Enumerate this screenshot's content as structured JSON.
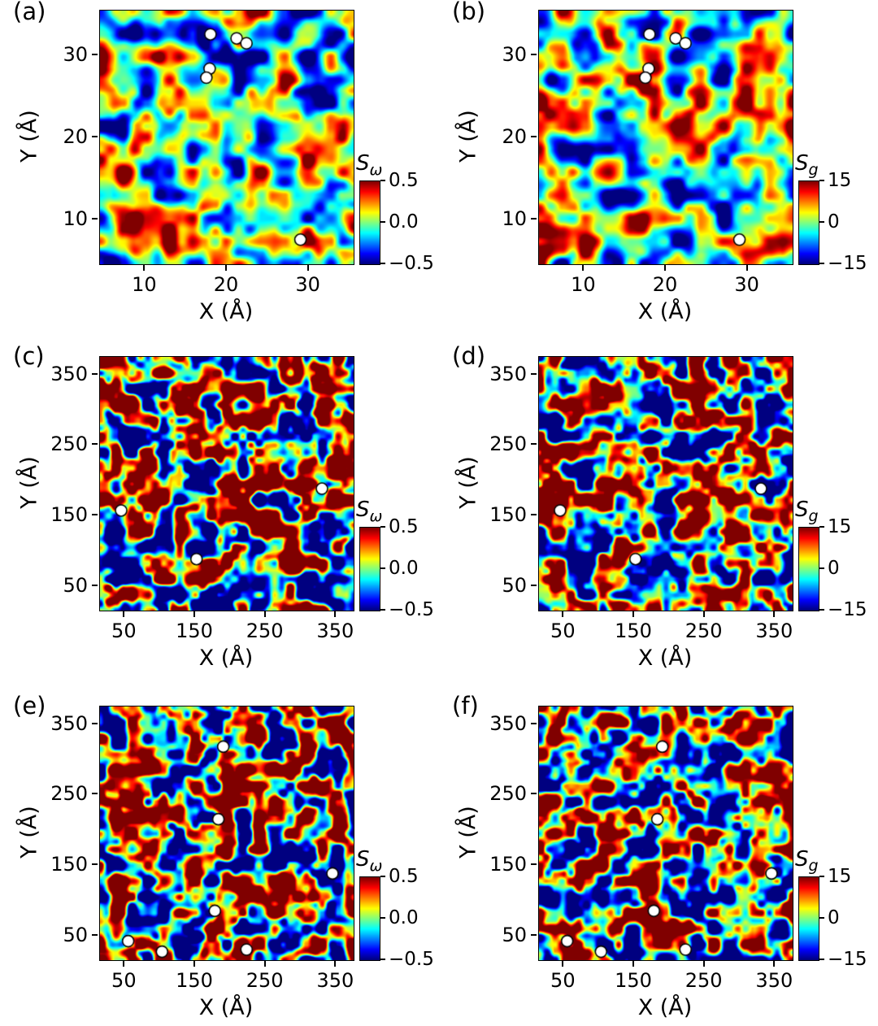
{
  "chart_data": [
    {
      "type": "heatmap",
      "colormap": "jet",
      "label": "(a)",
      "xlabel": "X (Å)",
      "ylabel": "Y (Å)",
      "x_range": [
        4.5,
        35.5
      ],
      "y_range": [
        4.5,
        35.5
      ],
      "x_ticks": [
        "10",
        "20",
        "30"
      ],
      "y_ticks": [
        "10",
        "20",
        "30"
      ],
      "colorbar": {
        "base": "S",
        "sub": "ω",
        "ticks": [
          "0.5",
          "0.0",
          "−0.5"
        ],
        "value_range": [
          -0.5,
          0.5
        ]
      },
      "markers": [
        [
          18.0,
          32.6
        ],
        [
          21.2,
          32.1
        ],
        [
          22.4,
          31.5
        ],
        [
          17.9,
          28.4
        ],
        [
          17.5,
          27.3
        ],
        [
          29.0,
          7.5
        ]
      ],
      "field_note": "smooth spatial entropy map, values saturating colorbar range",
      "seed": 101,
      "grid": 11,
      "gain": 1.6
    },
    {
      "type": "heatmap",
      "colormap": "jet",
      "label": "(b)",
      "xlabel": "X (Å)",
      "ylabel": "Y (Å)",
      "x_range": [
        4.5,
        35.5
      ],
      "y_range": [
        4.5,
        35.5
      ],
      "x_ticks": [
        "10",
        "20",
        "30"
      ],
      "y_ticks": [
        "10",
        "20",
        "30"
      ],
      "colorbar": {
        "base": "S",
        "sub": "g",
        "ticks": [
          "15",
          "0",
          "−15"
        ],
        "value_range": [
          -15,
          15
        ]
      },
      "markers": [
        [
          18.0,
          32.6
        ],
        [
          21.2,
          32.1
        ],
        [
          22.4,
          31.5
        ],
        [
          17.9,
          28.4
        ],
        [
          17.5,
          27.3
        ],
        [
          29.0,
          7.5
        ]
      ],
      "field_note": "smooth spatial entropy map, values saturating colorbar range",
      "seed": 202,
      "grid": 11,
      "gain": 1.5
    },
    {
      "type": "heatmap",
      "colormap": "jet",
      "label": "(c)",
      "xlabel": "X (Å)",
      "ylabel": "Y (Å)",
      "x_range": [
        15,
        375
      ],
      "y_range": [
        15,
        375
      ],
      "x_ticks": [
        "50",
        "150",
        "250",
        "350"
      ],
      "y_ticks": [
        "50",
        "150",
        "250",
        "350"
      ],
      "colorbar": {
        "base": "S",
        "sub": "ω",
        "ticks": [
          "0.5",
          "0.0",
          "−0.5"
        ],
        "value_range": [
          -0.5,
          0.5
        ]
      },
      "markers": [
        [
          45,
          157
        ],
        [
          152,
          88
        ],
        [
          330,
          188
        ]
      ],
      "field_note": "higher-frequency saturated spatial map",
      "seed": 303,
      "grid": 16,
      "gain": 2.8
    },
    {
      "type": "heatmap",
      "colormap": "jet",
      "label": "(d)",
      "xlabel": "X (Å)",
      "ylabel": "Y (Å)",
      "x_range": [
        15,
        375
      ],
      "y_range": [
        15,
        375
      ],
      "x_ticks": [
        "50",
        "150",
        "250",
        "350"
      ],
      "y_ticks": [
        "50",
        "150",
        "250",
        "350"
      ],
      "colorbar": {
        "base": "S",
        "sub": "g",
        "ticks": [
          "15",
          "0",
          "−15"
        ],
        "value_range": [
          -15,
          15
        ]
      },
      "markers": [
        [
          45,
          157
        ],
        [
          152,
          88
        ],
        [
          330,
          188
        ]
      ],
      "field_note": "higher-frequency saturated spatial map",
      "seed": 404,
      "grid": 16,
      "gain": 2.6
    },
    {
      "type": "heatmap",
      "colormap": "jet",
      "label": "(e)",
      "xlabel": "X (Å)",
      "ylabel": "Y (Å)",
      "x_range": [
        15,
        375
      ],
      "y_range": [
        15,
        375
      ],
      "x_ticks": [
        "50",
        "150",
        "250",
        "350"
      ],
      "y_ticks": [
        "50",
        "150",
        "250",
        "350"
      ],
      "colorbar": {
        "base": "S",
        "sub": "ω",
        "ticks": [
          "0.5",
          "0.0",
          "−0.5"
        ],
        "value_range": [
          -0.5,
          0.5
        ]
      },
      "markers": [
        [
          190,
          318
        ],
        [
          183,
          215
        ],
        [
          345,
          138
        ],
        [
          178,
          85
        ],
        [
          55,
          42
        ],
        [
          103,
          27
        ],
        [
          223,
          30
        ]
      ],
      "field_note": "higher-frequency saturated spatial map",
      "seed": 505,
      "grid": 16,
      "gain": 2.8
    },
    {
      "type": "heatmap",
      "colormap": "jet",
      "label": "(f)",
      "xlabel": "X (Å)",
      "ylabel": "Y (Å)",
      "x_range": [
        15,
        375
      ],
      "y_range": [
        15,
        375
      ],
      "x_ticks": [
        "50",
        "150",
        "250",
        "350"
      ],
      "y_ticks": [
        "50",
        "150",
        "250",
        "350"
      ],
      "colorbar": {
        "base": "S",
        "sub": "g",
        "ticks": [
          "15",
          "0",
          "−15"
        ],
        "value_range": [
          -15,
          15
        ]
      },
      "markers": [
        [
          190,
          318
        ],
        [
          183,
          215
        ],
        [
          345,
          138
        ],
        [
          178,
          85
        ],
        [
          55,
          42
        ],
        [
          103,
          27
        ],
        [
          223,
          30
        ]
      ],
      "field_note": "higher-frequency saturated spatial map",
      "seed": 606,
      "grid": 16,
      "gain": 2.6
    }
  ],
  "layout": {
    "background": "#ffffff",
    "marker_face": "#ffffff",
    "marker_edge": "#000000"
  }
}
